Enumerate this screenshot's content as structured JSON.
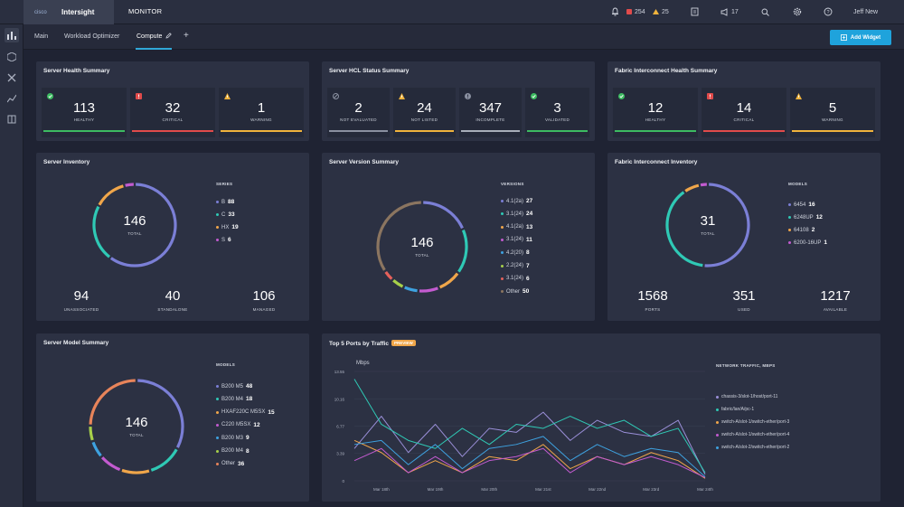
{
  "app": {
    "name": "Intersight",
    "logo_text": "cisco",
    "section": "MONITOR"
  },
  "topbar": {
    "critical_count": "254",
    "warning_count": "25",
    "announcements": "17",
    "user": "Jeff New"
  },
  "tabs": [
    {
      "label": "Main"
    },
    {
      "label": "Workload Optimizer"
    },
    {
      "label": "Compute"
    }
  ],
  "add_widget_label": "Add Widget",
  "colors": {
    "healthy": "#3dbb61",
    "critical": "#e14b4b",
    "warning": "#f0b33c",
    "not_evaluated": "#8a90a0",
    "incomplete": "#a8aeb9",
    "validated": "#3dbb61",
    "accent": "#1fa3dc"
  },
  "server_health": {
    "title": "Server Health Summary",
    "items": [
      {
        "value": "113",
        "label": "HEALTHY"
      },
      {
        "value": "32",
        "label": "CRITICAL"
      },
      {
        "value": "1",
        "label": "WARNING"
      }
    ]
  },
  "server_hcl": {
    "title": "Server HCL Status Summary",
    "items": [
      {
        "value": "2",
        "label": "NOT EVALUATED"
      },
      {
        "value": "24",
        "label": "NOT LISTED"
      },
      {
        "value": "347",
        "label": "INCOMPLETE"
      },
      {
        "value": "3",
        "label": "VALIDATED"
      }
    ]
  },
  "fi_health": {
    "title": "Fabric Interconnect Health Summary",
    "items": [
      {
        "value": "12",
        "label": "HEALTHY"
      },
      {
        "value": "14",
        "label": "CRITICAL"
      },
      {
        "value": "5",
        "label": "WARNING"
      }
    ]
  },
  "server_inventory": {
    "title": "Server Inventory",
    "total": "146",
    "total_label": "TOTAL",
    "legend_title": "SERIES",
    "series": [
      {
        "name": "B",
        "value": "88",
        "color": "#7b7fd6"
      },
      {
        "name": "C",
        "value": "33",
        "color": "#2fc9b5"
      },
      {
        "name": "HX",
        "value": "19",
        "color": "#f0a64a"
      },
      {
        "name": "S",
        "value": "6",
        "color": "#c35bd0"
      }
    ],
    "bottom": [
      {
        "value": "94",
        "label": "UNASSOCIATED"
      },
      {
        "value": "40",
        "label": "STANDALONE"
      },
      {
        "value": "106",
        "label": "MANAGED"
      }
    ]
  },
  "server_version": {
    "title": "Server Version Summary",
    "total": "146",
    "total_label": "TOTAL",
    "legend_title": "VERSIONS",
    "series": [
      {
        "name": "4.1(2a)",
        "value": "27",
        "color": "#7b7fd6"
      },
      {
        "name": "3.1(24)",
        "value": "24",
        "color": "#2fc9b5"
      },
      {
        "name": "4.1(2a)",
        "value": "13",
        "color": "#f0a64a"
      },
      {
        "name": "3.1(24)",
        "value": "11",
        "color": "#c35bd0"
      },
      {
        "name": "4.2(20)",
        "value": "8",
        "color": "#3ea2e0"
      },
      {
        "name": "2.2(24)",
        "value": "7",
        "color": "#a7d04a"
      },
      {
        "name": "3.1(24)",
        "value": "6",
        "color": "#e5615b"
      },
      {
        "name": "Other",
        "value": "50",
        "color": "#8b7560"
      }
    ]
  },
  "fi_inventory": {
    "title": "Fabric Interconnect Inventory",
    "total": "31",
    "total_label": "TOTAL",
    "legend_title": "MODELS",
    "series": [
      {
        "name": "6454",
        "value": "16",
        "color": "#7b7fd6"
      },
      {
        "name": "6248UP",
        "value": "12",
        "color": "#2fc9b5"
      },
      {
        "name": "64108",
        "value": "2",
        "color": "#f0a64a"
      },
      {
        "name": "6200-16UP",
        "value": "1",
        "color": "#c35bd0"
      }
    ],
    "bottom": [
      {
        "value": "1568",
        "label": "PORTS"
      },
      {
        "value": "351",
        "label": "USED"
      },
      {
        "value": "1217",
        "label": "AVAILABLE"
      }
    ]
  },
  "server_model": {
    "title": "Server Model Summary",
    "total": "146",
    "total_label": "TOTAL",
    "legend_title": "MODELS",
    "series": [
      {
        "name": "B200 M5",
        "value": "48",
        "color": "#7b7fd6"
      },
      {
        "name": "B200 M4",
        "value": "18",
        "color": "#2fc9b5"
      },
      {
        "name": "HXAF220C M5SX",
        "value": "15",
        "color": "#f0a64a"
      },
      {
        "name": "C220 M5SX",
        "value": "12",
        "color": "#c35bd0"
      },
      {
        "name": "B200 M3",
        "value": "9",
        "color": "#3ea2e0"
      },
      {
        "name": "B200 M4",
        "value": "8",
        "color": "#a7d04a"
      },
      {
        "name": "Other",
        "value": "36",
        "color": "#e8845a"
      }
    ]
  },
  "top_ports": {
    "title": "Top 5 Ports by Traffic",
    "badge": "PREVIEW",
    "y_unit": "Mbps",
    "legend_title": "NETWORK TRAFFIC, MBPS",
    "y_ticks": [
      "13.55",
      "10.16",
      "6.77",
      "3.39",
      "0"
    ],
    "x_ticks": [
      "Mar 18th",
      "Mar 19th",
      "Mar 20th",
      "Mar 21st",
      "Mar 22nd",
      "Mar 23rd",
      "Mar 24th"
    ]
  },
  "chart_data": {
    "type": "line",
    "title": "Top 5 Ports by Traffic",
    "ylabel": "Mbps",
    "ylim": [
      0,
      13.55
    ],
    "x": [
      "Mar 18th",
      "",
      "Mar 19th",
      "",
      "Mar 20th",
      "",
      "Mar 21st",
      "",
      "Mar 22nd",
      "",
      "Mar 23rd",
      "",
      "Mar 24th",
      ""
    ],
    "series": [
      {
        "name": "chassis-3/slot-1/host/port-11",
        "color": "#9a8fd8",
        "values": [
          4.0,
          8.0,
          3.5,
          7.0,
          3.0,
          6.5,
          6.0,
          8.5,
          5.0,
          7.5,
          6.0,
          5.5,
          7.5,
          0.8
        ]
      },
      {
        "name": "fabric/lan/A/pc-1",
        "color": "#2fc9b5",
        "values": [
          12.6,
          7.0,
          5.0,
          4.0,
          6.5,
          4.5,
          7.0,
          6.5,
          8.0,
          6.5,
          7.5,
          5.5,
          6.5,
          1.0
        ]
      },
      {
        "name": "switch-A/slot-1/switch-ether/port-3",
        "color": "#f0a64a",
        "values": [
          5.0,
          3.5,
          1.0,
          2.5,
          1.0,
          3.0,
          2.5,
          4.5,
          1.5,
          3.0,
          2.0,
          3.5,
          2.5,
          0.3
        ]
      },
      {
        "name": "switch-A/slot-1/switch-ether/port-4",
        "color": "#c35bd0",
        "values": [
          2.5,
          4.0,
          1.0,
          3.0,
          1.0,
          2.5,
          3.0,
          4.0,
          1.0,
          3.0,
          2.0,
          3.0,
          2.0,
          0.4
        ]
      },
      {
        "name": "switch-A/slot-2/switch-ether/port-2",
        "color": "#3ea2e0",
        "values": [
          4.5,
          5.0,
          2.0,
          4.5,
          1.5,
          4.0,
          4.5,
          5.5,
          2.5,
          4.5,
          3.0,
          4.0,
          3.5,
          0.5
        ]
      }
    ]
  }
}
